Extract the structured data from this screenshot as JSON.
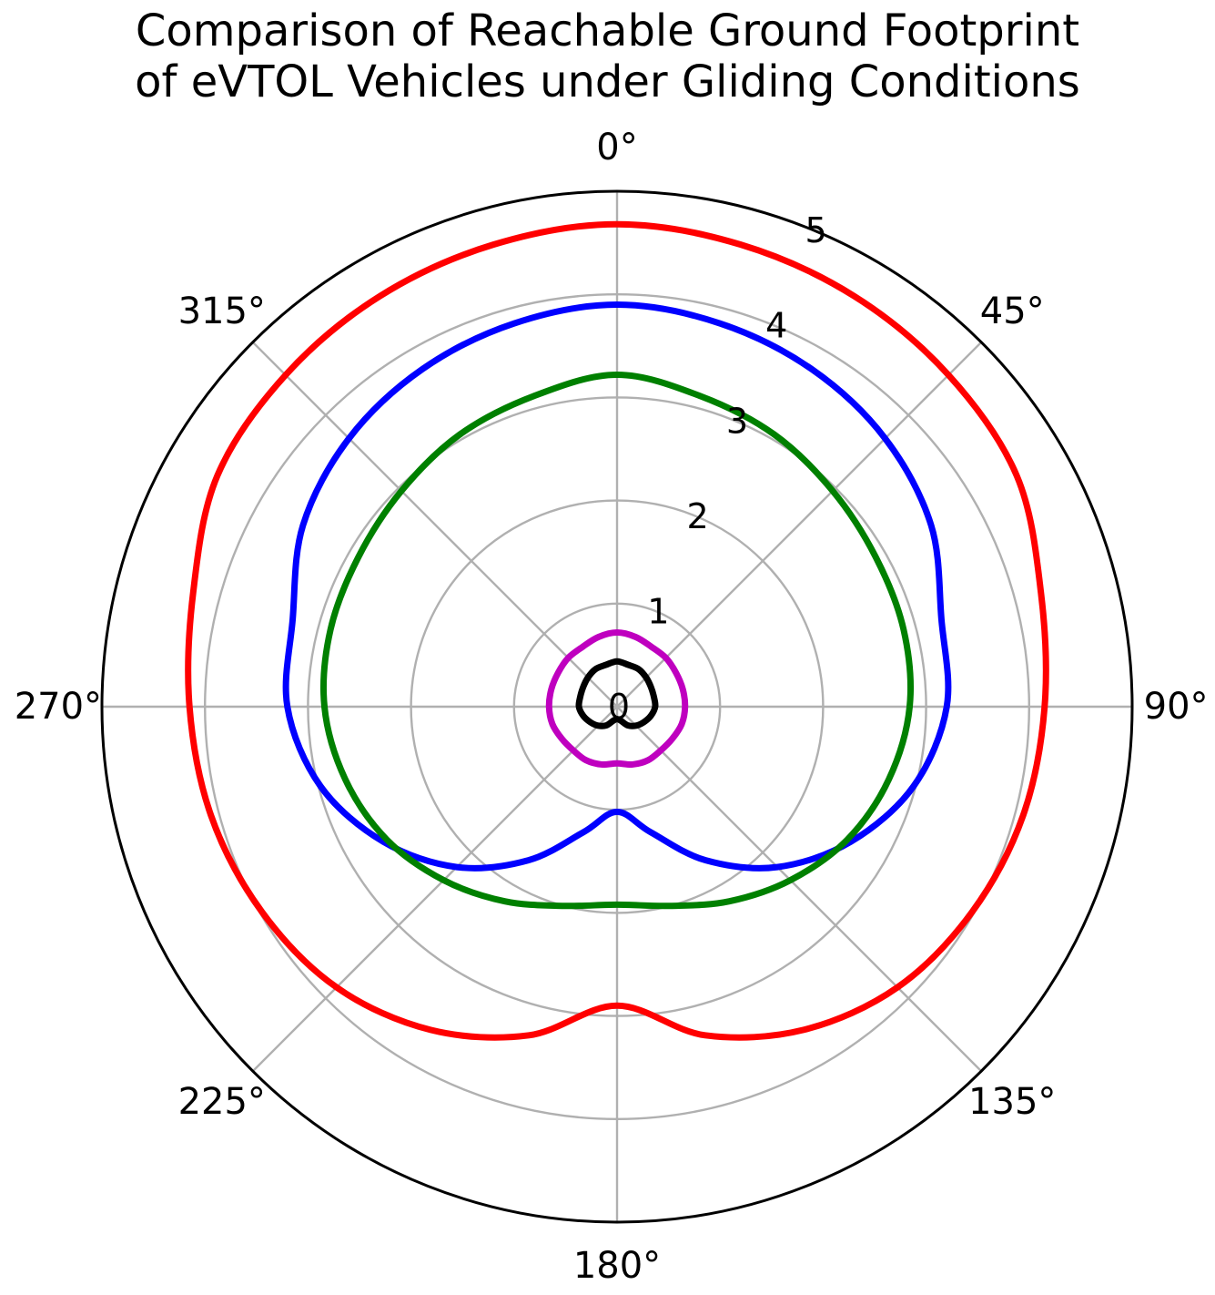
{
  "chart_data": {
    "type": "line",
    "projection": "polar",
    "title_line1": "Comparison of Reachable Ground Footprint",
    "title_line2": "of eVTOL Vehicles under Gliding Conditions",
    "theta_zero_location": "top",
    "theta_direction": "clockwise",
    "theta_ticks": [
      "0°",
      "45°",
      "90°",
      "135°",
      "180°",
      "225°",
      "270°",
      "315°"
    ],
    "r_ticks": [
      "0",
      "1",
      "2",
      "3",
      "4",
      "5"
    ],
    "r_tick_values": [
      0,
      1,
      2,
      3,
      4,
      5
    ],
    "rlim": [
      0,
      5
    ],
    "grid": true,
    "legend": false,
    "series": [
      {
        "color": "#ff0000",
        "theta_deg": [
          0,
          15,
          30,
          45,
          60,
          75,
          90,
          105,
          120,
          135,
          150,
          165,
          180,
          195,
          210,
          225,
          240,
          255,
          270,
          285,
          300,
          315,
          330,
          345
        ],
        "r": [
          4.68,
          4.64,
          4.6,
          4.55,
          4.48,
          4.26,
          4.15,
          4.08,
          3.98,
          3.85,
          3.62,
          3.3,
          2.9,
          3.3,
          3.62,
          3.85,
          3.98,
          4.08,
          4.15,
          4.26,
          4.48,
          4.55,
          4.6,
          4.64
        ]
      },
      {
        "color": "#0000ff",
        "theta_deg": [
          0,
          15,
          30,
          45,
          60,
          75,
          90,
          105,
          120,
          135,
          150,
          165,
          180,
          195,
          210,
          225,
          240,
          255,
          270,
          285,
          300,
          315,
          330,
          345
        ],
        "r": [
          3.9,
          3.85,
          3.78,
          3.68,
          3.52,
          3.26,
          3.2,
          2.98,
          2.62,
          2.2,
          1.72,
          1.26,
          1.02,
          1.26,
          1.72,
          2.2,
          2.62,
          2.98,
          3.2,
          3.26,
          3.52,
          3.68,
          3.78,
          3.85
        ]
      },
      {
        "color": "#008000",
        "theta_deg": [
          0,
          15,
          30,
          45,
          60,
          75,
          90,
          105,
          120,
          135,
          150,
          165,
          180,
          195,
          210,
          225,
          240,
          255,
          270,
          285,
          300,
          315,
          330,
          345
        ],
        "r": [
          3.22,
          3.12,
          3.05,
          2.96,
          2.9,
          2.88,
          2.84,
          2.73,
          2.58,
          2.38,
          2.18,
          2.0,
          1.92,
          2.0,
          2.18,
          2.38,
          2.58,
          2.73,
          2.84,
          2.88,
          2.9,
          2.96,
          3.05,
          3.12
        ]
      },
      {
        "color": "#bf00bf",
        "theta_deg": [
          0,
          15,
          30,
          45,
          60,
          75,
          90,
          105,
          120,
          135,
          150,
          165,
          180,
          195,
          210,
          225,
          240,
          255,
          270,
          285,
          300,
          315,
          330,
          345
        ],
        "r": [
          0.72,
          0.7,
          0.67,
          0.67,
          0.66,
          0.66,
          0.66,
          0.65,
          0.62,
          0.6,
          0.6,
          0.58,
          0.55,
          0.58,
          0.6,
          0.6,
          0.62,
          0.65,
          0.66,
          0.66,
          0.66,
          0.67,
          0.67,
          0.7
        ]
      },
      {
        "color": "#000000",
        "theta_deg": [
          0,
          15,
          30,
          45,
          60,
          75,
          90,
          105,
          120,
          135,
          150,
          165,
          180,
          195,
          210,
          225,
          240,
          255,
          270,
          285,
          300,
          315,
          330,
          345
        ],
        "r": [
          0.44,
          0.42,
          0.42,
          0.4,
          0.38,
          0.37,
          0.37,
          0.34,
          0.3,
          0.26,
          0.21,
          0.14,
          0.12,
          0.14,
          0.21,
          0.26,
          0.3,
          0.34,
          0.37,
          0.37,
          0.38,
          0.4,
          0.42,
          0.42
        ]
      }
    ]
  }
}
